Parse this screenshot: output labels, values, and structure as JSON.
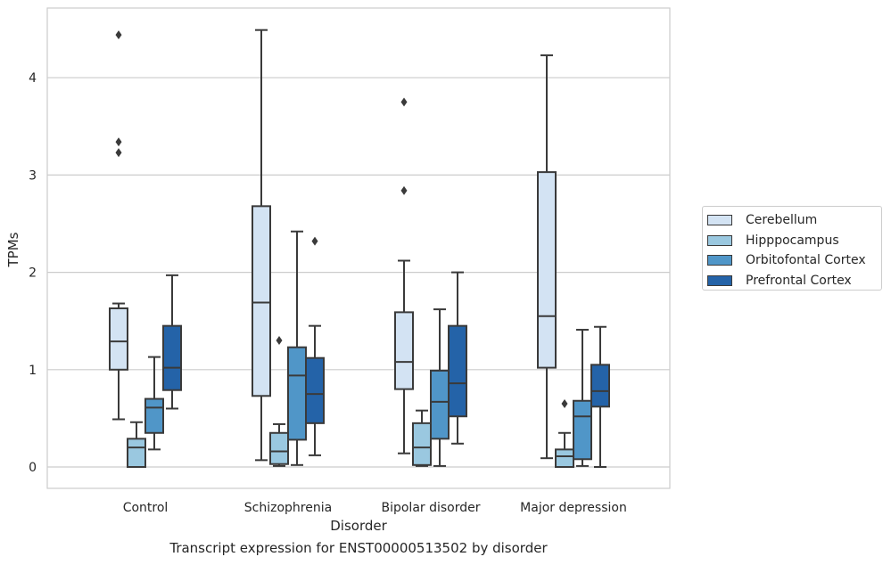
{
  "chart_data": {
    "type": "box",
    "title": "Transcript expression for ENST00000513502 by disorder",
    "xlabel": "Disorder",
    "ylabel": "TPMs",
    "ylim": [
      -0.22,
      4.72
    ],
    "yticks": [
      "0",
      "1",
      "2",
      "3",
      "4"
    ],
    "grid": "horizontal",
    "legend_position": "right",
    "categories": [
      "Control",
      "Schizophrenia",
      "Bipolar disorder",
      "Major depression"
    ],
    "series": [
      {
        "name": "Cerebellum",
        "color": "#d3e3f3",
        "boxes": [
          {
            "whisker_low": 0.49,
            "q1": 1.0,
            "median": 1.29,
            "q3": 1.63,
            "whisker_high": 1.68,
            "outliers": [
              3.23,
              3.34,
              4.44
            ]
          },
          {
            "whisker_low": 0.07,
            "q1": 0.73,
            "median": 1.69,
            "q3": 2.68,
            "whisker_high": 4.49,
            "outliers": []
          },
          {
            "whisker_low": 0.14,
            "q1": 0.8,
            "median": 1.08,
            "q3": 1.59,
            "whisker_high": 2.12,
            "outliers": [
              2.84,
              3.75
            ]
          },
          {
            "whisker_low": 0.09,
            "q1": 1.02,
            "median": 1.55,
            "q3": 3.03,
            "whisker_high": 4.23,
            "outliers": []
          }
        ]
      },
      {
        "name": "Hipppocampus",
        "color": "#9ac8e0",
        "boxes": [
          {
            "whisker_low": 0.0,
            "q1": 0.0,
            "median": 0.2,
            "q3": 0.29,
            "whisker_high": 0.46,
            "outliers": []
          },
          {
            "whisker_low": 0.01,
            "q1": 0.03,
            "median": 0.16,
            "q3": 0.35,
            "whisker_high": 0.44,
            "outliers": [
              1.3
            ]
          },
          {
            "whisker_low": 0.01,
            "q1": 0.02,
            "median": 0.2,
            "q3": 0.45,
            "whisker_high": 0.58,
            "outliers": []
          },
          {
            "whisker_low": 0.0,
            "q1": 0.0,
            "median": 0.11,
            "q3": 0.18,
            "whisker_high": 0.35,
            "outliers": [
              0.65
            ]
          }
        ]
      },
      {
        "name": "Orbitofontal Cortex",
        "color": "#5096c8",
        "boxes": [
          {
            "whisker_low": 0.18,
            "q1": 0.35,
            "median": 0.61,
            "q3": 0.7,
            "whisker_high": 1.13,
            "outliers": []
          },
          {
            "whisker_low": 0.02,
            "q1": 0.28,
            "median": 0.94,
            "q3": 1.23,
            "whisker_high": 2.42,
            "outliers": []
          },
          {
            "whisker_low": 0.01,
            "q1": 0.29,
            "median": 0.67,
            "q3": 0.99,
            "whisker_high": 1.62,
            "outliers": []
          },
          {
            "whisker_low": 0.01,
            "q1": 0.08,
            "median": 0.52,
            "q3": 0.68,
            "whisker_high": 1.41,
            "outliers": []
          }
        ]
      },
      {
        "name": "Prefrontal Cortex",
        "color": "#2463a8",
        "boxes": [
          {
            "whisker_low": 0.6,
            "q1": 0.79,
            "median": 1.02,
            "q3": 1.45,
            "whisker_high": 1.97,
            "outliers": []
          },
          {
            "whisker_low": 0.12,
            "q1": 0.45,
            "median": 0.75,
            "q3": 1.12,
            "whisker_high": 1.45,
            "outliers": [
              2.32
            ]
          },
          {
            "whisker_low": 0.24,
            "q1": 0.52,
            "median": 0.86,
            "q3": 1.45,
            "whisker_high": 2.0,
            "outliers": []
          },
          {
            "whisker_low": 0.0,
            "q1": 0.62,
            "median": 0.78,
            "q3": 1.05,
            "whisker_high": 1.44,
            "outliers": []
          }
        ]
      }
    ]
  }
}
